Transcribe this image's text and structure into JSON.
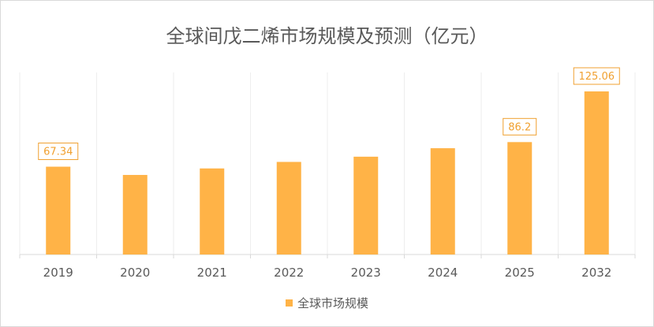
{
  "chart_data": {
    "type": "bar",
    "title": "全球间戊二烯市场规模及预测（亿元）",
    "categories": [
      "2019",
      "2020",
      "2021",
      "2022",
      "2023",
      "2024",
      "2025",
      "2032"
    ],
    "series": [
      {
        "name": "全球市场规模",
        "values": [
          67.34,
          61.0,
          66.0,
          71.0,
          75.0,
          81.5,
          86.2,
          125.06
        ]
      }
    ],
    "data_labels": [
      {
        "category": "2019",
        "text": "67.34"
      },
      {
        "category": "2025",
        "text": "86.2"
      },
      {
        "category": "2032",
        "text": "125.06"
      }
    ],
    "xlabel": "",
    "ylabel": "",
    "ylim": [
      0,
      140
    ],
    "grid": "vertical",
    "legend_position": "bottom",
    "bar_color": "#ffb347",
    "label_color": "#f0a030",
    "axis_color": "#d9d9d9",
    "text_color": "#595959"
  }
}
